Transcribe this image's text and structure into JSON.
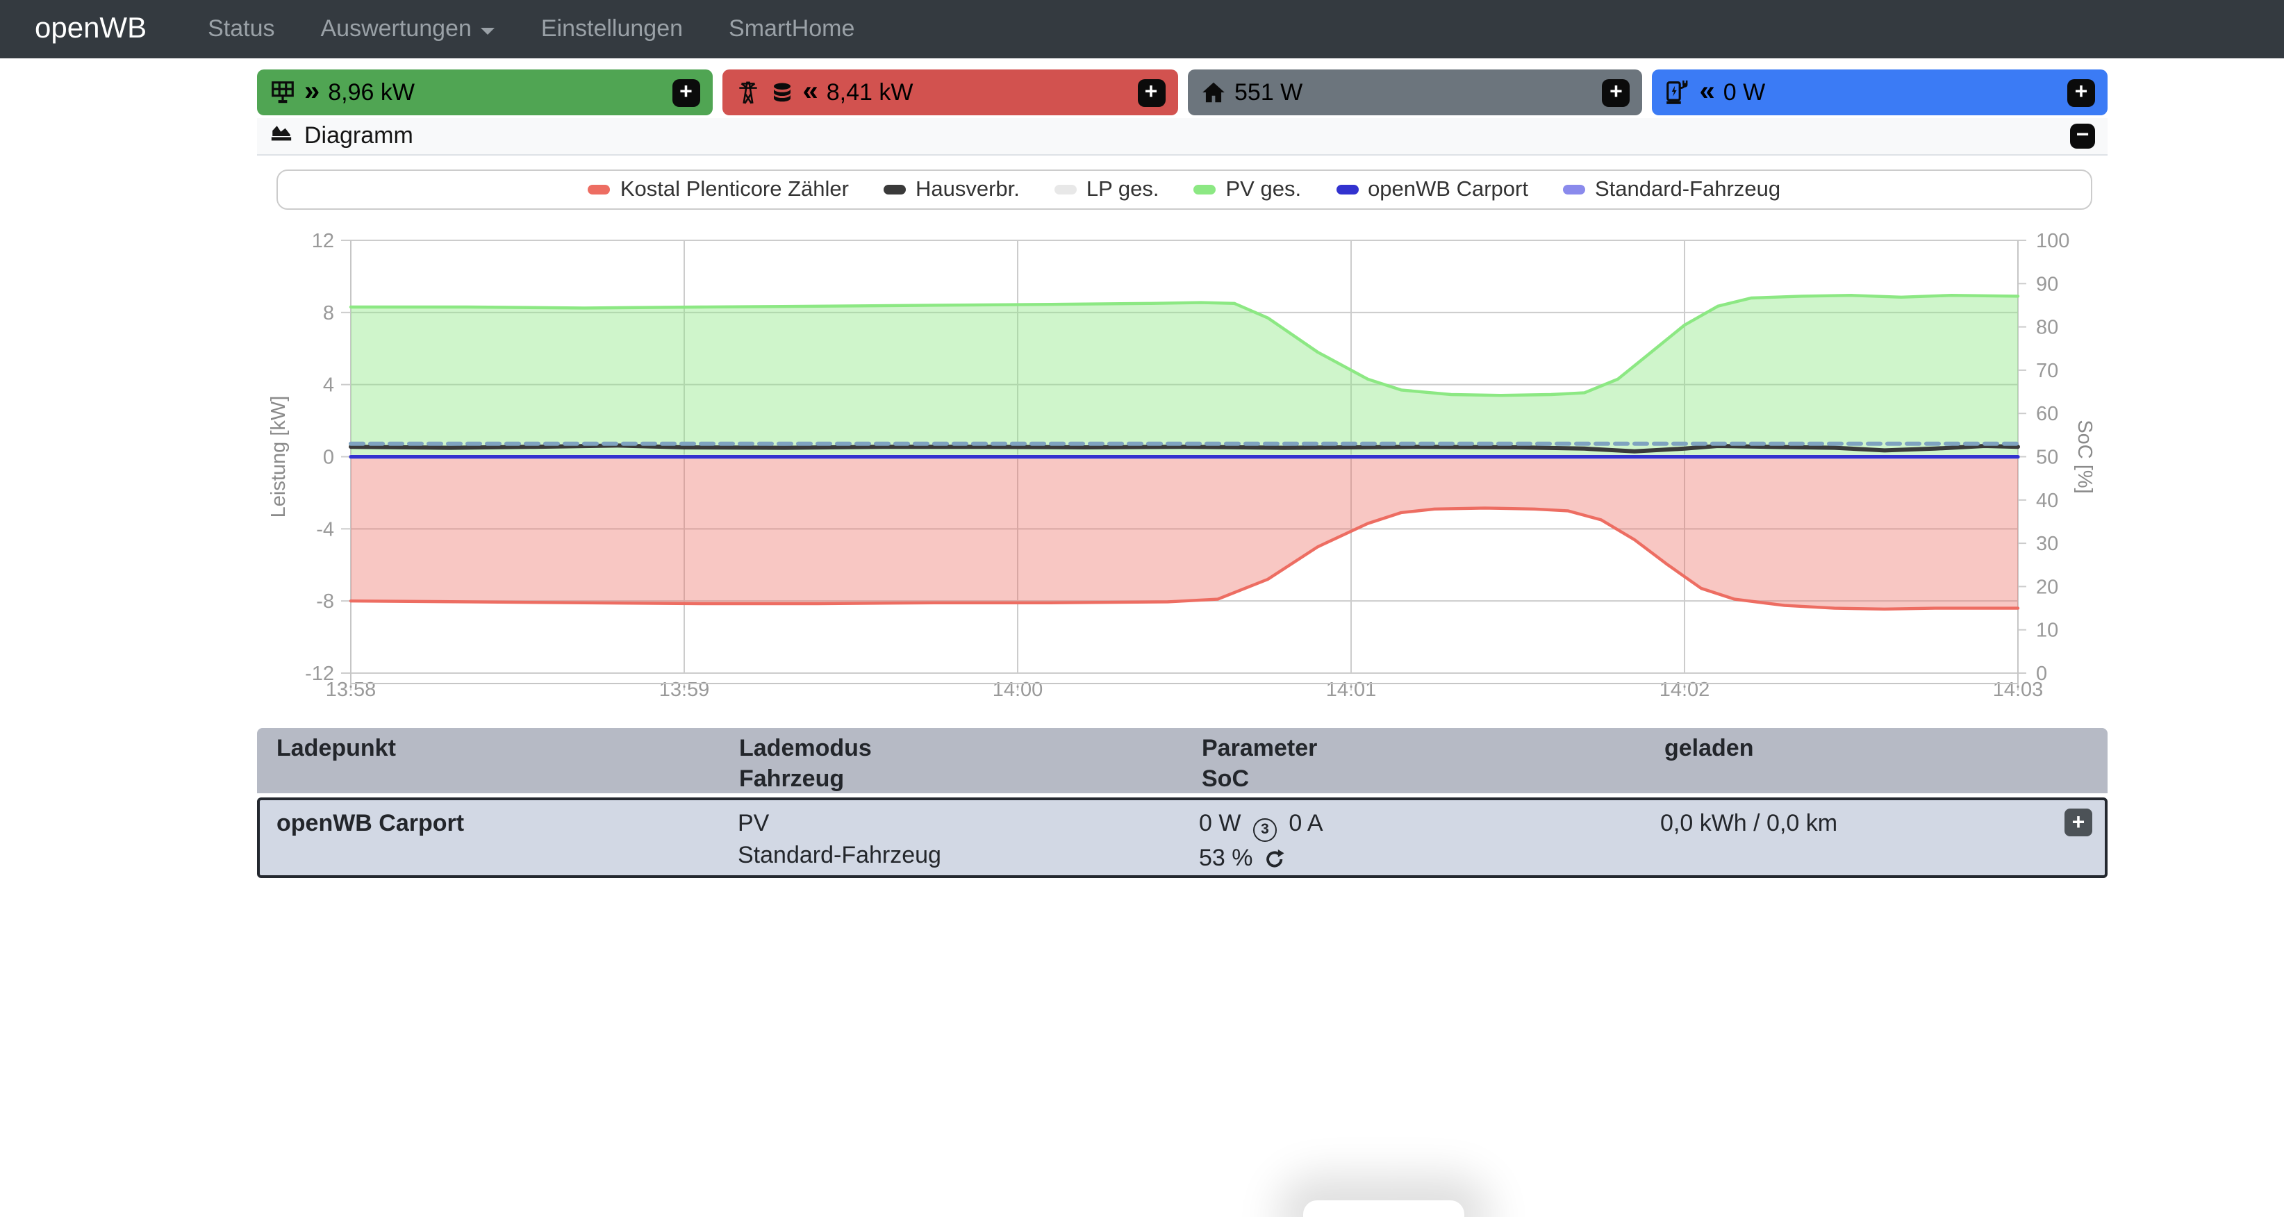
{
  "navbar": {
    "brand": "openWB",
    "items": [
      "Status",
      "Auswertungen",
      "Einstellungen",
      "SmartHome"
    ]
  },
  "badges": {
    "pv": {
      "value": "8,96 kW",
      "direction": "»",
      "color": "#50a553"
    },
    "grid": {
      "value": "8,41 kW",
      "direction": "«",
      "color": "#d2524f"
    },
    "house": {
      "value": "551 W",
      "direction": "",
      "color": "#6c757d"
    },
    "chargepoint": {
      "value": "0 W",
      "direction": "«",
      "color": "#3b7bf5"
    }
  },
  "diagram": {
    "title": "Diagramm"
  },
  "chart_data": {
    "type": "area",
    "title": "",
    "x_ticks": [
      "13:58",
      "13:59",
      "14:00",
      "14:01",
      "14:02",
      "14:03"
    ],
    "x_range_minutes": [
      0,
      5
    ],
    "ylabel_left": "Leistung [kW]",
    "ylabel_right": "SoC [%]",
    "ylim_left": [
      -12,
      12
    ],
    "yticks_left": [
      -12,
      -8,
      -4,
      0,
      4,
      8,
      12
    ],
    "ylim_right": [
      0,
      100
    ],
    "yticks_right": [
      0,
      10,
      20,
      30,
      40,
      50,
      60,
      70,
      80,
      90,
      100
    ],
    "grid": true,
    "legend_position": "top",
    "series": [
      {
        "name": "Kostal Plenticore Zähler",
        "color": "#ed6d62",
        "type": "area",
        "axis": "left",
        "width": 2.2,
        "fill_opacity": 0.38,
        "points": [
          [
            0,
            -8.0
          ],
          [
            0.35,
            -8.05
          ],
          [
            0.7,
            -8.1
          ],
          [
            1.05,
            -8.15
          ],
          [
            1.4,
            -8.15
          ],
          [
            1.75,
            -8.1
          ],
          [
            2.1,
            -8.1
          ],
          [
            2.45,
            -8.05
          ],
          [
            2.6,
            -7.9
          ],
          [
            2.75,
            -6.8
          ],
          [
            2.9,
            -5.0
          ],
          [
            3.05,
            -3.7
          ],
          [
            3.15,
            -3.1
          ],
          [
            3.25,
            -2.9
          ],
          [
            3.4,
            -2.85
          ],
          [
            3.55,
            -2.9
          ],
          [
            3.65,
            -3.0
          ],
          [
            3.75,
            -3.5
          ],
          [
            3.85,
            -4.6
          ],
          [
            3.95,
            -6.0
          ],
          [
            4.05,
            -7.3
          ],
          [
            4.15,
            -7.9
          ],
          [
            4.3,
            -8.25
          ],
          [
            4.45,
            -8.4
          ],
          [
            4.6,
            -8.45
          ],
          [
            4.75,
            -8.4
          ],
          [
            4.9,
            -8.4
          ],
          [
            5,
            -8.4
          ]
        ]
      },
      {
        "name": "Hausverbr.",
        "color": "#3a3a3a",
        "type": "line",
        "axis": "left",
        "width": 3,
        "points": [
          [
            0,
            0.55
          ],
          [
            0.3,
            0.5
          ],
          [
            0.55,
            0.55
          ],
          [
            0.8,
            0.62
          ],
          [
            1.0,
            0.52
          ],
          [
            1.3,
            0.5
          ],
          [
            1.6,
            0.55
          ],
          [
            1.9,
            0.55
          ],
          [
            2.2,
            0.52
          ],
          [
            2.5,
            0.55
          ],
          [
            2.8,
            0.5
          ],
          [
            3.0,
            0.52
          ],
          [
            3.2,
            0.55
          ],
          [
            3.5,
            0.52
          ],
          [
            3.7,
            0.45
          ],
          [
            3.85,
            0.3
          ],
          [
            4.0,
            0.45
          ],
          [
            4.1,
            0.6
          ],
          [
            4.25,
            0.55
          ],
          [
            4.45,
            0.5
          ],
          [
            4.6,
            0.35
          ],
          [
            4.75,
            0.45
          ],
          [
            4.9,
            0.6
          ],
          [
            5,
            0.55
          ]
        ]
      },
      {
        "name": "LP ges.",
        "color": "#e8e8e8",
        "type": "line",
        "axis": "left",
        "width": 3,
        "points": [
          [
            0,
            0
          ],
          [
            5,
            0
          ]
        ]
      },
      {
        "name": "PV ges.",
        "color": "#8ce883",
        "type": "area",
        "axis": "left",
        "width": 2.2,
        "fill_opacity": 0.42,
        "points": [
          [
            0,
            8.3
          ],
          [
            0.35,
            8.3
          ],
          [
            0.7,
            8.25
          ],
          [
            1.05,
            8.3
          ],
          [
            1.4,
            8.35
          ],
          [
            1.75,
            8.4
          ],
          [
            2.1,
            8.45
          ],
          [
            2.4,
            8.5
          ],
          [
            2.55,
            8.55
          ],
          [
            2.65,
            8.5
          ],
          [
            2.75,
            7.7
          ],
          [
            2.9,
            5.8
          ],
          [
            3.05,
            4.3
          ],
          [
            3.15,
            3.7
          ],
          [
            3.3,
            3.45
          ],
          [
            3.45,
            3.4
          ],
          [
            3.6,
            3.45
          ],
          [
            3.7,
            3.55
          ],
          [
            3.8,
            4.3
          ],
          [
            3.9,
            5.8
          ],
          [
            4.0,
            7.3
          ],
          [
            4.1,
            8.35
          ],
          [
            4.2,
            8.8
          ],
          [
            4.35,
            8.9
          ],
          [
            4.5,
            8.95
          ],
          [
            4.65,
            8.85
          ],
          [
            4.8,
            8.95
          ],
          [
            5,
            8.9
          ]
        ]
      },
      {
        "name": "openWB Carport",
        "color": "#3232cf",
        "type": "line",
        "axis": "left",
        "width": 2.6,
        "points": [
          [
            0,
            0
          ],
          [
            5,
            0
          ]
        ]
      },
      {
        "name": "Standard-Fahrzeug",
        "color": "#7fa3c0",
        "legend_color": "#8a8aec",
        "type": "line",
        "axis": "right",
        "width": 3,
        "dash": "9,5",
        "points": [
          [
            0,
            53
          ],
          [
            5,
            53
          ]
        ]
      }
    ]
  },
  "table": {
    "headers": {
      "col1": "Ladepunkt",
      "col2a": "Lademodus",
      "col2b": "Fahrzeug",
      "col3a": "Parameter",
      "col3b": "SoC",
      "col4": "geladen"
    },
    "row": {
      "name": "openWB Carport",
      "mode": "PV",
      "vehicle": "Standard-Fahrzeug",
      "power": "0 W",
      "phases": "3",
      "current": "0 A",
      "soc": "53 %",
      "charged": "0,0 kWh / 0,0 km"
    }
  }
}
